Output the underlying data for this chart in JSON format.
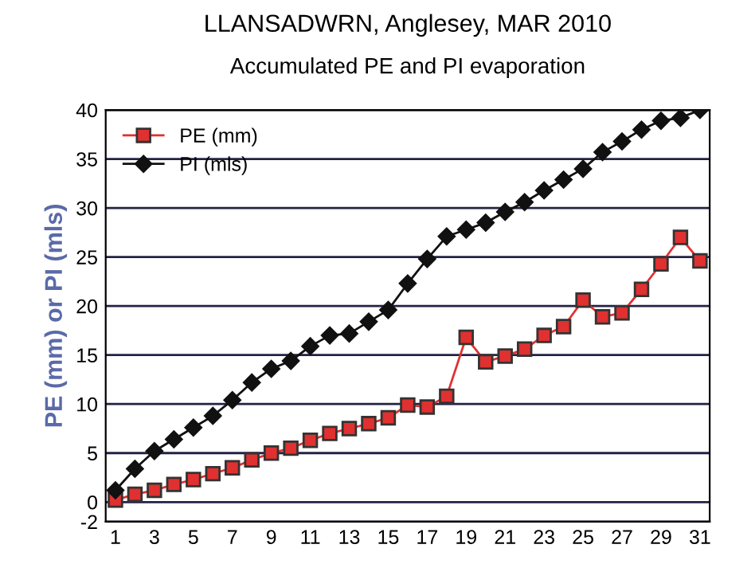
{
  "chart_data": {
    "type": "line",
    "title": "LLANSADWRN, Anglesey, MAR 2010",
    "subtitle": "Accumulated PE and PI evaporation",
    "ylabel": "PE (mm) or PI (mls)",
    "categories": [
      "1",
      null,
      "3",
      null,
      "5",
      null,
      "7",
      null,
      "9",
      null,
      "11",
      null,
      "13",
      null,
      "15",
      null,
      "17",
      null,
      "19",
      null,
      "21",
      null,
      "23",
      null,
      "25",
      null,
      "27",
      null,
      "29",
      null,
      "31"
    ],
    "series": [
      {
        "name": "PE (mm)",
        "color": "#e03030",
        "marker": "square",
        "values": [
          0.2,
          0.8,
          1.2,
          1.8,
          2.3,
          2.9,
          3.5,
          4.3,
          5.0,
          5.5,
          6.3,
          7.0,
          7.5,
          8.0,
          8.6,
          9.9,
          9.7,
          10.8,
          16.8,
          14.3,
          14.9,
          15.6,
          17.0,
          17.9,
          20.6,
          18.9,
          19.3,
          21.7,
          24.3,
          27.0,
          24.6
        ]
      },
      {
        "name": "PI (mls)",
        "color": "#111111",
        "marker": "diamond",
        "values": [
          1.2,
          3.4,
          5.2,
          6.4,
          7.6,
          8.8,
          10.4,
          12.2,
          13.6,
          14.4,
          15.9,
          17.0,
          17.2,
          18.4,
          19.6,
          22.3,
          24.8,
          27.1,
          27.8,
          28.5,
          29.6,
          30.6,
          31.8,
          32.9,
          34.0,
          35.7,
          36.8,
          38.0,
          38.9,
          39.2,
          40.0
        ]
      }
    ],
    "ylim": [
      -2,
      40
    ],
    "yticks": [
      -2,
      0,
      5,
      10,
      15,
      20,
      25,
      30,
      35,
      40
    ],
    "grid": "y",
    "legend": "top left"
  }
}
